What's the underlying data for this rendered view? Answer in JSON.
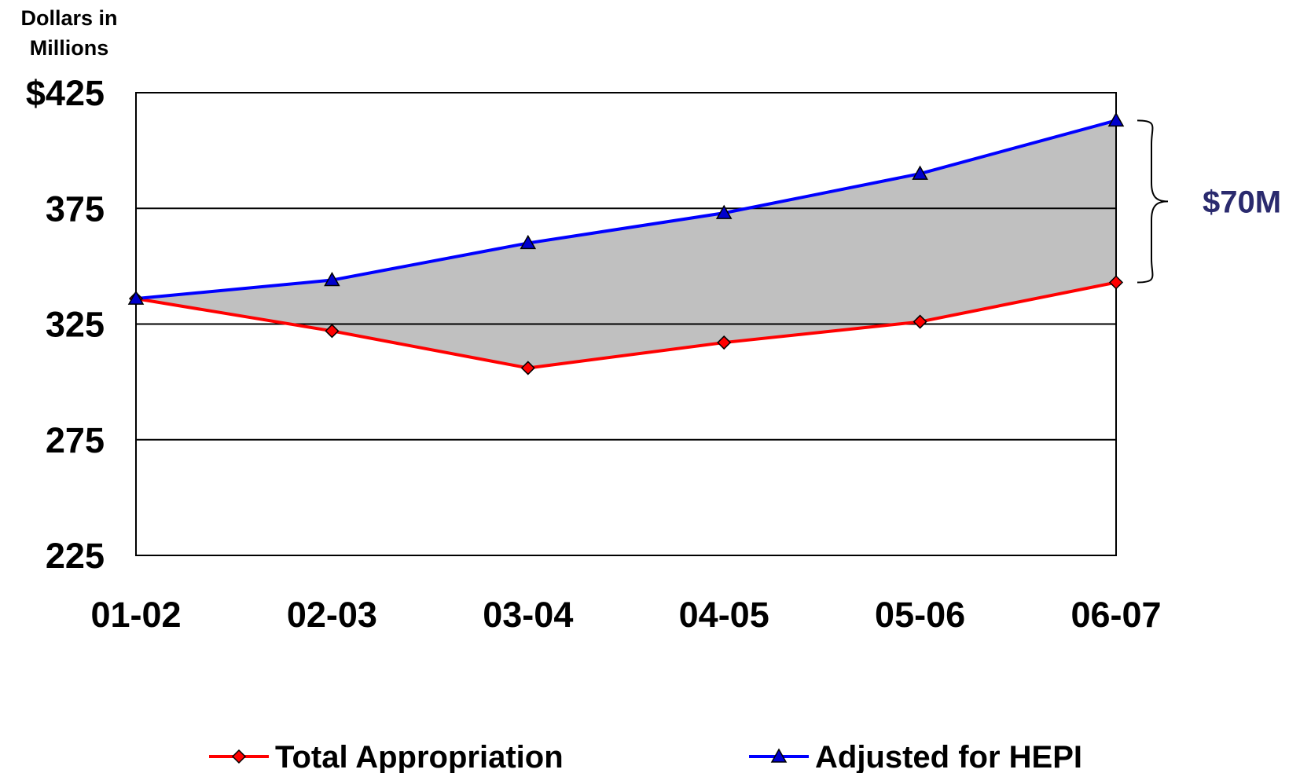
{
  "chart_data": {
    "type": "line",
    "ylabel": "Dollars in Millions",
    "ylabel_lines": [
      "Dollars in",
      "Millions"
    ],
    "y_tick_labels": [
      "$425",
      "375",
      "325",
      "275",
      "225"
    ],
    "y_ticks": [
      425,
      375,
      325,
      275,
      225
    ],
    "ylim": [
      225,
      425
    ],
    "categories": [
      "01-02",
      "02-03",
      "03-04",
      "04-05",
      "05-06",
      "06-07"
    ],
    "grid": "horizontal",
    "legend_position": "bottom",
    "series": [
      {
        "name": "Total Appropriation",
        "color": "#ff0000",
        "marker": "diamond",
        "marker_color": "#ff0000",
        "values": [
          336,
          322,
          306,
          317,
          326,
          343
        ]
      },
      {
        "name": "Adjusted for HEPI",
        "color": "#0000ff",
        "marker": "triangle",
        "marker_color": "#0000cc",
        "values": [
          336,
          344,
          360,
          373,
          390,
          413
        ]
      }
    ],
    "fill_between": {
      "color": "#c0c0c0"
    },
    "annotation": {
      "text": "$70M",
      "between": [
        343,
        413
      ],
      "color": "#2a2a6e"
    }
  }
}
